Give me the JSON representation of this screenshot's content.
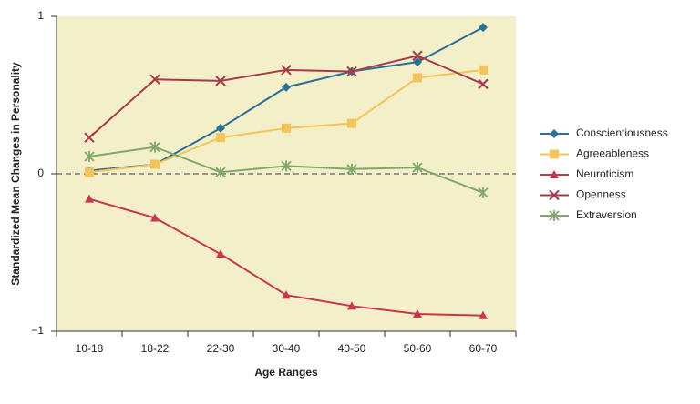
{
  "chart_data": {
    "type": "line",
    "x_label": "Age Ranges",
    "y_label": "Standardized Mean Changes in Personality",
    "categories": [
      "10-18",
      "18-22",
      "22-30",
      "30-40",
      "40-50",
      "50-60",
      "60-70"
    ],
    "ylim": [
      -1,
      1
    ],
    "yticks": [
      {
        "value": -1,
        "label": "−1"
      },
      0,
      1
    ],
    "zero_line": "dashed",
    "background": "#f3efc9",
    "legend": "right",
    "series": [
      {
        "name": "Conscientiousness",
        "color": "#2a6f95",
        "marker": "diamond",
        "values": [
          0.02,
          0.06,
          0.29,
          0.55,
          0.65,
          0.71,
          0.93
        ]
      },
      {
        "name": "Agreeableness",
        "color": "#f4c35a",
        "marker": "square",
        "values": [
          0.01,
          0.06,
          0.23,
          0.29,
          0.32,
          0.61,
          0.66
        ]
      },
      {
        "name": "Neuroticism",
        "color": "#c8374d",
        "marker": "triangle",
        "values": [
          -0.16,
          -0.28,
          -0.51,
          -0.77,
          -0.84,
          -0.89,
          -0.9
        ]
      },
      {
        "name": "Openness",
        "color": "#a83a48",
        "marker": "x",
        "values": [
          0.23,
          0.6,
          0.59,
          0.66,
          0.65,
          0.75,
          0.57
        ]
      },
      {
        "name": "Extraversion",
        "color": "#7fa86a",
        "marker": "asterisk",
        "values": [
          0.11,
          0.17,
          0.01,
          0.05,
          0.03,
          0.04,
          -0.12
        ]
      }
    ]
  }
}
